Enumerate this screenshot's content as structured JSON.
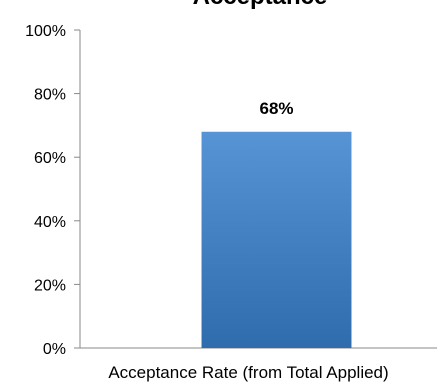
{
  "chart_data": {
    "type": "bar",
    "title": "Acceptance",
    "categories": [
      "Acceptance Rate (from Total Applied)"
    ],
    "values": [
      68
    ],
    "data_labels": [
      "68%"
    ],
    "ylim": [
      0,
      100
    ],
    "yticks": [
      0,
      20,
      40,
      60,
      80,
      100
    ],
    "ytick_labels": [
      "0%",
      "20%",
      "40%",
      "60%",
      "80%",
      "100%"
    ],
    "xlabel": "",
    "ylabel": "",
    "grid": false,
    "legend": "none",
    "colors": {
      "bar_top": "#5694d6",
      "bar_bottom": "#2f6cad",
      "axis": "#888888"
    }
  }
}
